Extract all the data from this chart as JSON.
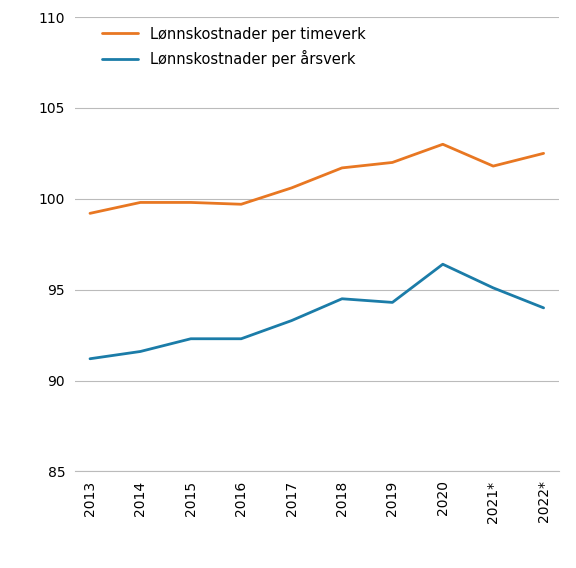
{
  "years": [
    "2013",
    "2014",
    "2015",
    "2016",
    "2017",
    "2018",
    "2019",
    "2020",
    "2021*",
    "2022*"
  ],
  "timeverk": [
    99.2,
    99.8,
    99.8,
    99.7,
    100.6,
    101.7,
    102.0,
    103.0,
    101.8,
    102.5
  ],
  "arsverk": [
    91.2,
    91.6,
    92.3,
    92.3,
    93.3,
    94.5,
    94.3,
    96.4,
    95.1,
    94.0
  ],
  "timeverk_color": "#E87722",
  "arsverk_color": "#1B7CA8",
  "timeverk_label": "Lønnskostnader per timeverk",
  "arsverk_label": "Lønnskostnader per årsverk",
  "ylim": [
    85,
    110
  ],
  "yticks": [
    85,
    90,
    95,
    100,
    105,
    110
  ],
  "linewidth": 2.0,
  "background_color": "#ffffff",
  "grid_color": "#bbbbbb",
  "legend_fontsize": 10.5,
  "tick_fontsize": 10
}
